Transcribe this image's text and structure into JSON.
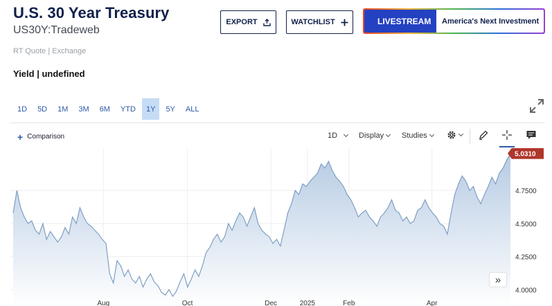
{
  "header": {
    "title": "U.S. 30 Year Treasury",
    "symbol": "US30Y:Tradeweb",
    "quote_source": "RT Quote | Exchange",
    "yield_label": "Yield | undefined"
  },
  "actions": {
    "export_label": "EXPORT",
    "watchlist_label": "WATCHLIST"
  },
  "livestream": {
    "tag_label": "LIVESTREAM",
    "text": "America's Next Investment"
  },
  "ranges": [
    "1D",
    "5D",
    "1M",
    "3M",
    "6M",
    "YTD",
    "1Y",
    "5Y",
    "ALL"
  ],
  "active_range": "1Y",
  "toolbar": {
    "comparison_label": "Comparison",
    "interval_label": "1D",
    "display_label": "Display",
    "studies_label": "Studies"
  },
  "colors": {
    "brand_navy": "#10204b",
    "accent_blue": "#2e5aa8",
    "live_blue": "#2441c2",
    "price_tag": "#b0362a",
    "area_fill": "#c8d8ea",
    "line": "#7f9fc4"
  },
  "chart_data": {
    "type": "area",
    "title": "",
    "xlabel": "",
    "ylabel": "",
    "last_value_label": "5.0310",
    "y_ticks": [
      "4.0000",
      "4.2500",
      "4.5000",
      "4.7500"
    ],
    "y_tick_values": [
      4.0,
      4.25,
      4.5,
      4.75
    ],
    "x_ticks": [
      "Aug",
      "Oct",
      "Dec",
      "2025",
      "Feb",
      "Apr"
    ],
    "x_tick_positions": [
      0.186,
      0.354,
      0.521,
      0.594,
      0.677,
      0.843
    ],
    "ylim": [
      3.95,
      5.07
    ],
    "grid": true,
    "values": [
      4.58,
      4.75,
      4.62,
      4.55,
      4.5,
      4.52,
      4.45,
      4.42,
      4.5,
      4.38,
      4.44,
      4.4,
      4.36,
      4.4,
      4.47,
      4.42,
      4.55,
      4.5,
      4.62,
      4.55,
      4.5,
      4.48,
      4.45,
      4.42,
      4.38,
      4.35,
      4.12,
      4.05,
      4.22,
      4.18,
      4.1,
      4.15,
      4.08,
      4.05,
      4.1,
      4.02,
      4.08,
      4.12,
      4.06,
      4.03,
      3.98,
      3.96,
      4.0,
      3.95,
      3.99,
      4.06,
      4.12,
      4.02,
      4.08,
      4.15,
      4.1,
      4.18,
      4.28,
      4.32,
      4.38,
      4.42,
      4.36,
      4.4,
      4.5,
      4.45,
      4.52,
      4.58,
      4.55,
      4.48,
      4.55,
      4.62,
      4.5,
      4.45,
      4.42,
      4.4,
      4.35,
      4.38,
      4.33,
      4.45,
      4.58,
      4.65,
      4.75,
      4.72,
      4.8,
      4.78,
      4.82,
      4.85,
      4.88,
      4.95,
      4.92,
      4.97,
      4.9,
      4.85,
      4.82,
      4.78,
      4.72,
      4.68,
      4.62,
      4.55,
      4.58,
      4.6,
      4.55,
      4.52,
      4.48,
      4.55,
      4.58,
      4.62,
      4.68,
      4.6,
      4.58,
      4.52,
      4.55,
      4.5,
      4.52,
      4.6,
      4.62,
      4.68,
      4.62,
      4.58,
      4.55,
      4.5,
      4.48,
      4.42,
      4.58,
      4.72,
      4.8,
      4.86,
      4.82,
      4.75,
      4.78,
      4.7,
      4.65,
      4.72,
      4.78,
      4.85,
      4.8,
      4.88,
      4.92,
      4.98,
      5.03
    ]
  }
}
